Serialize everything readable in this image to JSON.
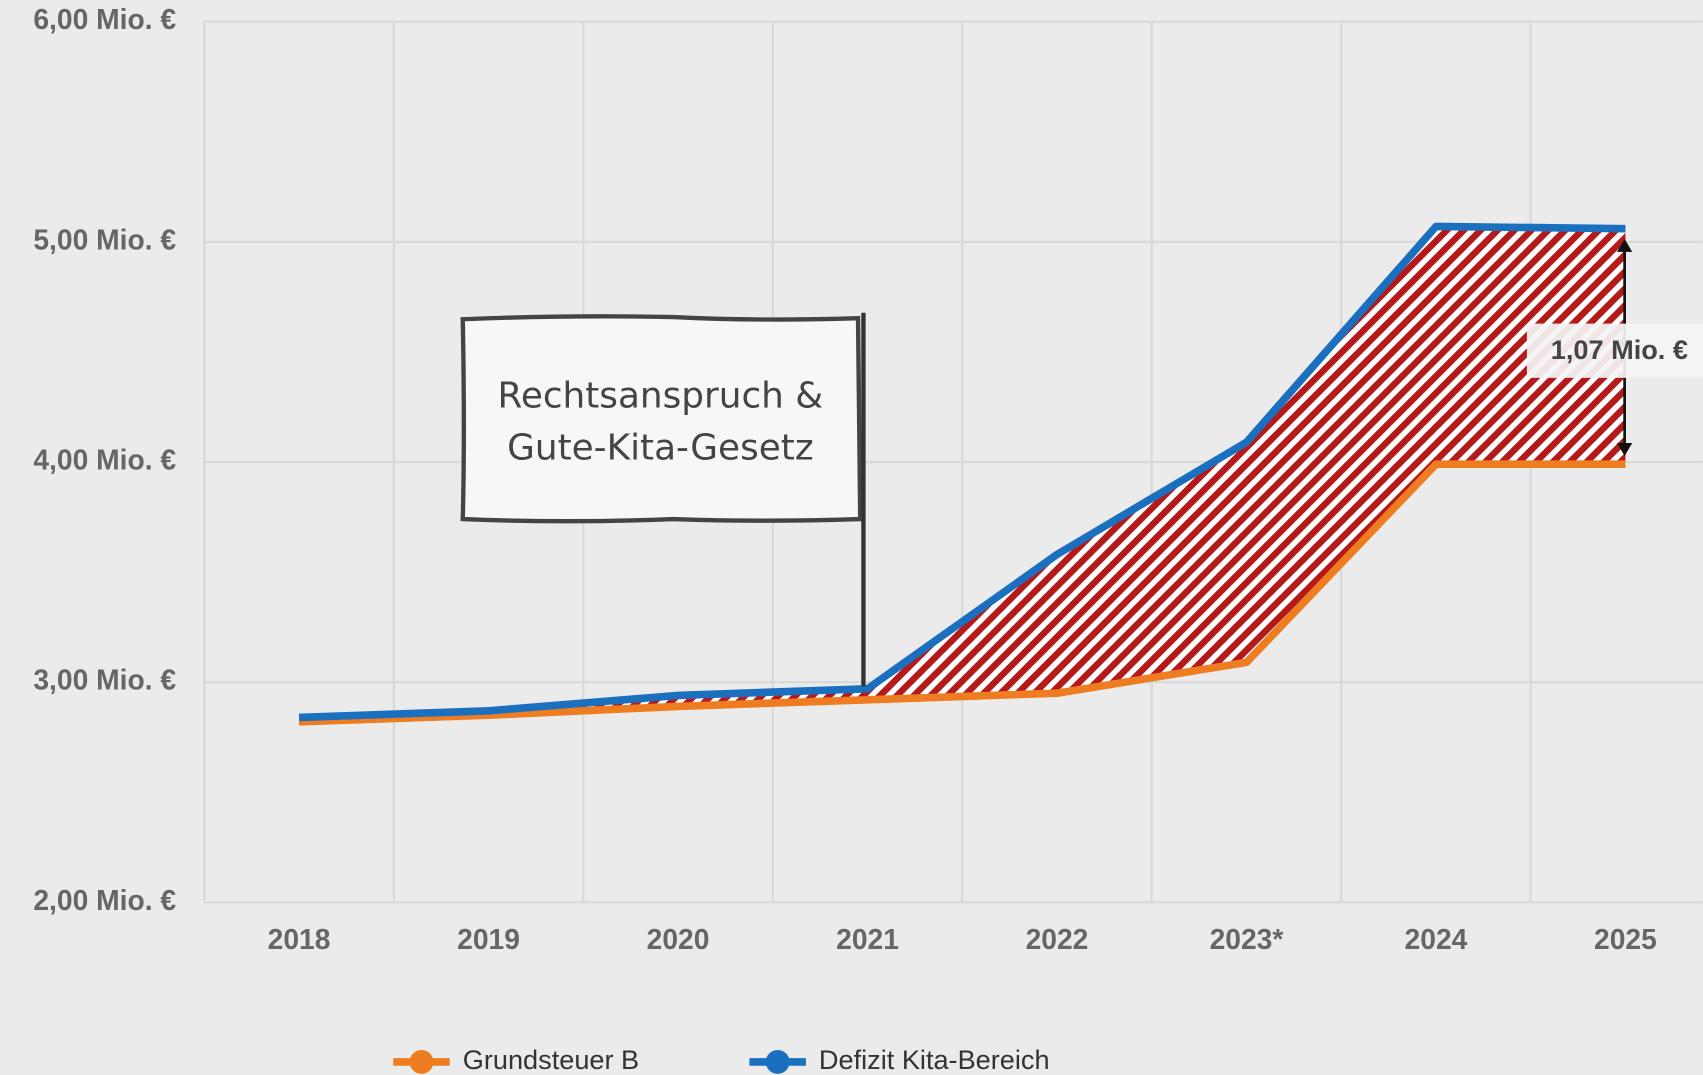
{
  "chart_data": {
    "type": "line",
    "categories": [
      "2018",
      "2019",
      "2020",
      "2021",
      "2022",
      "2023*",
      "2024",
      "2025"
    ],
    "series": [
      {
        "name": "Grundsteuer B",
        "color": "#ee7d22",
        "values": [
          2.82,
          2.85,
          2.89,
          2.92,
          2.95,
          3.09,
          3.99,
          3.99
        ]
      },
      {
        "name": "Defizit Kita-Bereich",
        "color": "#1a6fbf",
        "values": [
          2.84,
          2.87,
          2.94,
          2.97,
          3.58,
          4.09,
          5.07,
          5.06
        ]
      }
    ],
    "ylim": [
      2,
      6
    ],
    "yticks": [
      {
        "value": 2,
        "label": "2,00 Mio. €"
      },
      {
        "value": 3,
        "label": "3,00 Mio. €"
      },
      {
        "value": 4,
        "label": "4,00 Mio. €"
      },
      {
        "value": 5,
        "label": "5,00 Mio. €"
      },
      {
        "value": 6,
        "label": "6,00 Mio. €"
      }
    ],
    "grid": true,
    "annotations": {
      "flag": [
        "Rechtsanspruch &",
        "Gute-Kita-Gesetz"
      ],
      "gap_label": "1,07 Mio. €"
    }
  }
}
